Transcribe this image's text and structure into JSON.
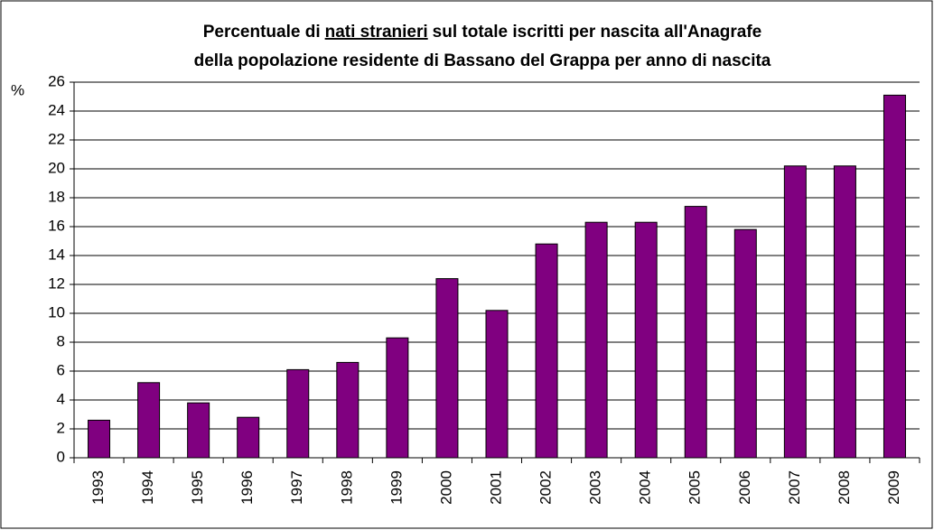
{
  "chart_data": {
    "type": "bar",
    "title": [
      "Percentuale di",
      "nati stranieri",
      "sul totale iscritti per nascita all'Anagrafe",
      "della popolazione residente di Bassano del Grappa per anno di nascita"
    ],
    "y_label": "%",
    "categories": [
      "1993",
      "1994",
      "1995",
      "1996",
      "1997",
      "1998",
      "1999",
      "2000",
      "2001",
      "2002",
      "2003",
      "2004",
      "2005",
      "2006",
      "2007",
      "2008",
      "2009"
    ],
    "values": [
      2.6,
      5.2,
      3.8,
      2.8,
      6.1,
      6.6,
      8.3,
      12.4,
      10.2,
      14.8,
      16.3,
      16.3,
      17.4,
      15.8,
      20.2,
      20.2,
      25.1
    ],
    "color": "#800080",
    "ylim": [
      0,
      26
    ],
    "yticks": [
      0,
      2,
      4,
      6,
      8,
      10,
      12,
      14,
      16,
      18,
      20,
      22,
      24,
      26
    ],
    "grid": true
  }
}
